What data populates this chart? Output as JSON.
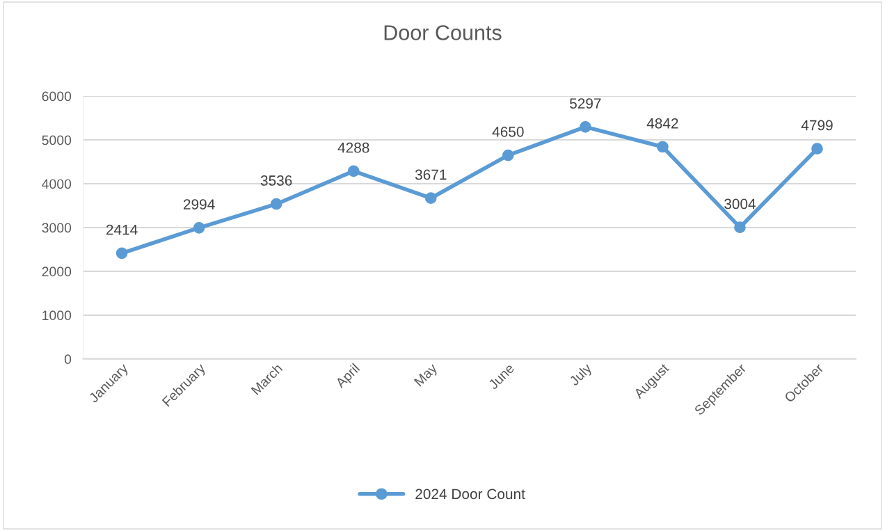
{
  "chart_data": {
    "type": "line",
    "title": "Door Counts",
    "categories": [
      "January",
      "February",
      "March",
      "April",
      "May",
      "June",
      "July",
      "August",
      "September",
      "October"
    ],
    "series": [
      {
        "name": "2024 Door Count",
        "color": "#5b9bd5",
        "values": [
          2414,
          2994,
          3536,
          4288,
          3671,
          4650,
          5297,
          4842,
          3004,
          4799
        ]
      }
    ],
    "ylim": [
      0,
      6000
    ],
    "yticks": [
      0,
      1000,
      2000,
      3000,
      4000,
      5000,
      6000
    ],
    "grid": "y",
    "legend": "bottom",
    "marker": "circle",
    "line_style": "solid",
    "data_labels": true
  }
}
